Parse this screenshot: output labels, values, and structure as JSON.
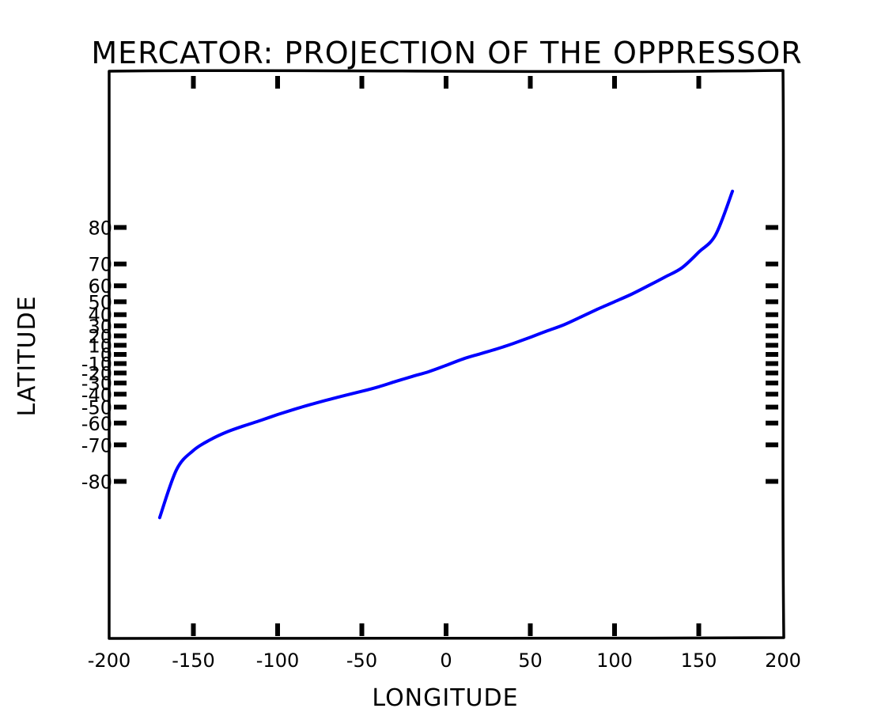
{
  "chart_data": {
    "type": "line",
    "title": "MERCATOR: PROJECTION OF THE OPPRESSOR",
    "xlabel": "LONGITUDE",
    "ylabel": "LATITUDE",
    "xlim": [
      -200,
      200
    ],
    "ylim": [
      -89.5,
      89.5
    ],
    "y_scale": "mercator",
    "grid": false,
    "x_ticks": [
      -200,
      -150,
      -100,
      -50,
      0,
      50,
      100,
      150,
      200
    ],
    "x_tick_labels": [
      "-200",
      "-150",
      "-100",
      "-50",
      "0",
      "50",
      "100",
      "150",
      "200"
    ],
    "x_tick_marks": [
      -150,
      -100,
      -50,
      0,
      50,
      100,
      150
    ],
    "y_ticks": [
      -80,
      -70,
      -60,
      -50,
      -40,
      -30,
      -20,
      -10,
      0,
      10,
      20,
      30,
      40,
      50,
      60,
      70,
      80
    ],
    "y_tick_labels": [
      "-80",
      "-70",
      "-60",
      "-50",
      "-40",
      "-30",
      "-20",
      "-10",
      "0",
      "10",
      "20",
      "30",
      "40",
      "50",
      "60",
      "70",
      "80"
    ],
    "series": [
      {
        "color": "#0000ff",
        "x": [
          -170,
          -160,
          -150,
          -140,
          -130,
          -120,
          -110,
          -100,
          -90,
          -80,
          -70,
          -60,
          -50,
          -40,
          -30,
          -20,
          -10,
          0,
          10,
          20,
          30,
          40,
          50,
          60,
          70,
          80,
          90,
          100,
          110,
          120,
          130,
          140,
          150,
          160,
          170
        ],
        "y": [
          -85,
          -77.5,
          -72,
          -68,
          -64.5,
          -61.5,
          -58.5,
          -55,
          -51.5,
          -48,
          -44.5,
          -41,
          -37.5,
          -33.5,
          -28.5,
          -23.5,
          -18.5,
          -12,
          -5,
          0.5,
          6,
          12,
          18.5,
          25,
          31,
          38,
          44.5,
          50,
          55,
          60,
          64.5,
          68.5,
          74,
          78.5,
          85
        ]
      }
    ]
  }
}
